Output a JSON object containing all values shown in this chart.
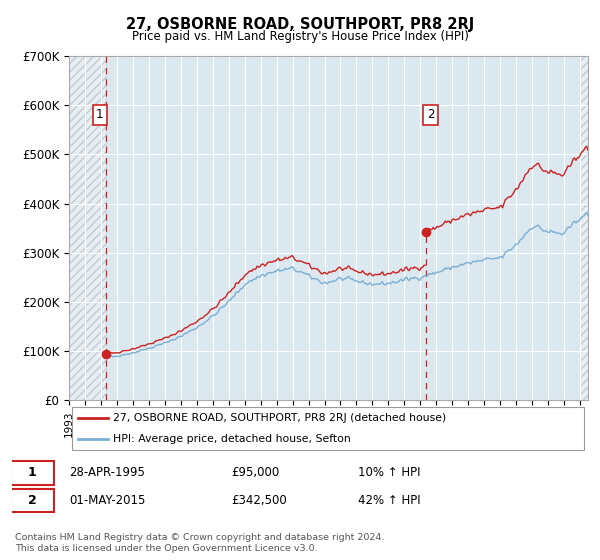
{
  "title": "27, OSBORNE ROAD, SOUTHPORT, PR8 2RJ",
  "subtitle": "Price paid vs. HM Land Registry's House Price Index (HPI)",
  "hpi_color": "#7bafd4",
  "price_color": "#cc2222",
  "bg_color": "#dce8f0",
  "grid_color": "#ffffff",
  "sale1_year": 1995.33,
  "sale1_price": 95000,
  "sale2_year": 2015.33,
  "sale2_price": 342500,
  "ylim": [
    0,
    700000
  ],
  "yticks": [
    0,
    100000,
    200000,
    300000,
    400000,
    500000,
    600000,
    700000
  ],
  "ytick_labels": [
    "£0",
    "£100K",
    "£200K",
    "£300K",
    "£400K",
    "£500K",
    "£600K",
    "£700K"
  ],
  "xmin": 1993,
  "xmax": 2025.5,
  "legend_line1": "27, OSBORNE ROAD, SOUTHPORT, PR8 2RJ (detached house)",
  "legend_line2": "HPI: Average price, detached house, Sefton",
  "date1": "28-APR-1995",
  "price1_str": "£95,000",
  "pct1": "10% ↑ HPI",
  "date2": "01-MAY-2015",
  "price2_str": "£342,500",
  "pct2": "42% ↑ HPI",
  "footnote": "Contains HM Land Registry data © Crown copyright and database right 2024.\nThis data is licensed under the Open Government Licence v3.0."
}
